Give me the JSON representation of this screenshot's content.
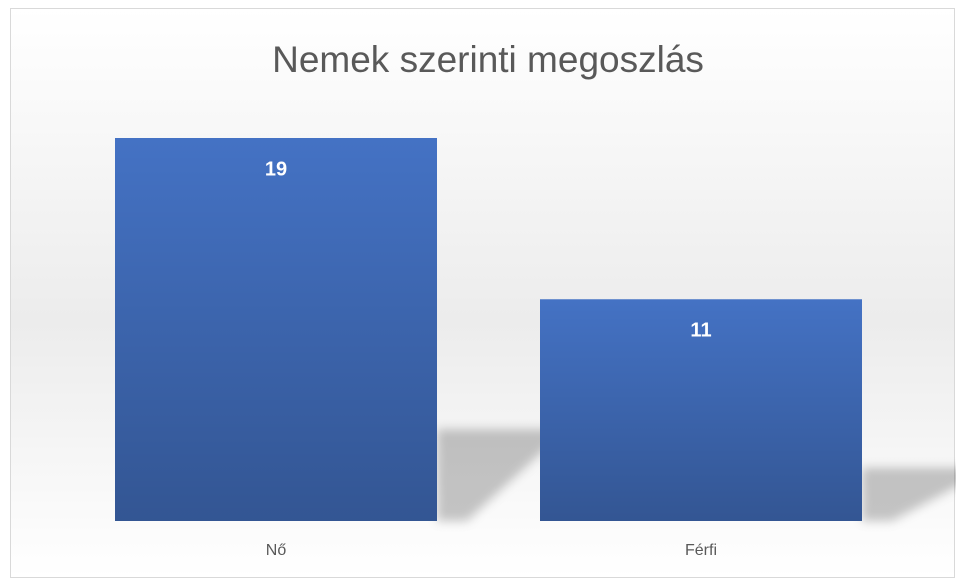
{
  "chart_data": {
    "type": "bar",
    "title": "Nemek szerinti megoszlás",
    "categories": [
      "Nő",
      "Férfi"
    ],
    "values": [
      19,
      11
    ],
    "color": "#4472c4"
  }
}
